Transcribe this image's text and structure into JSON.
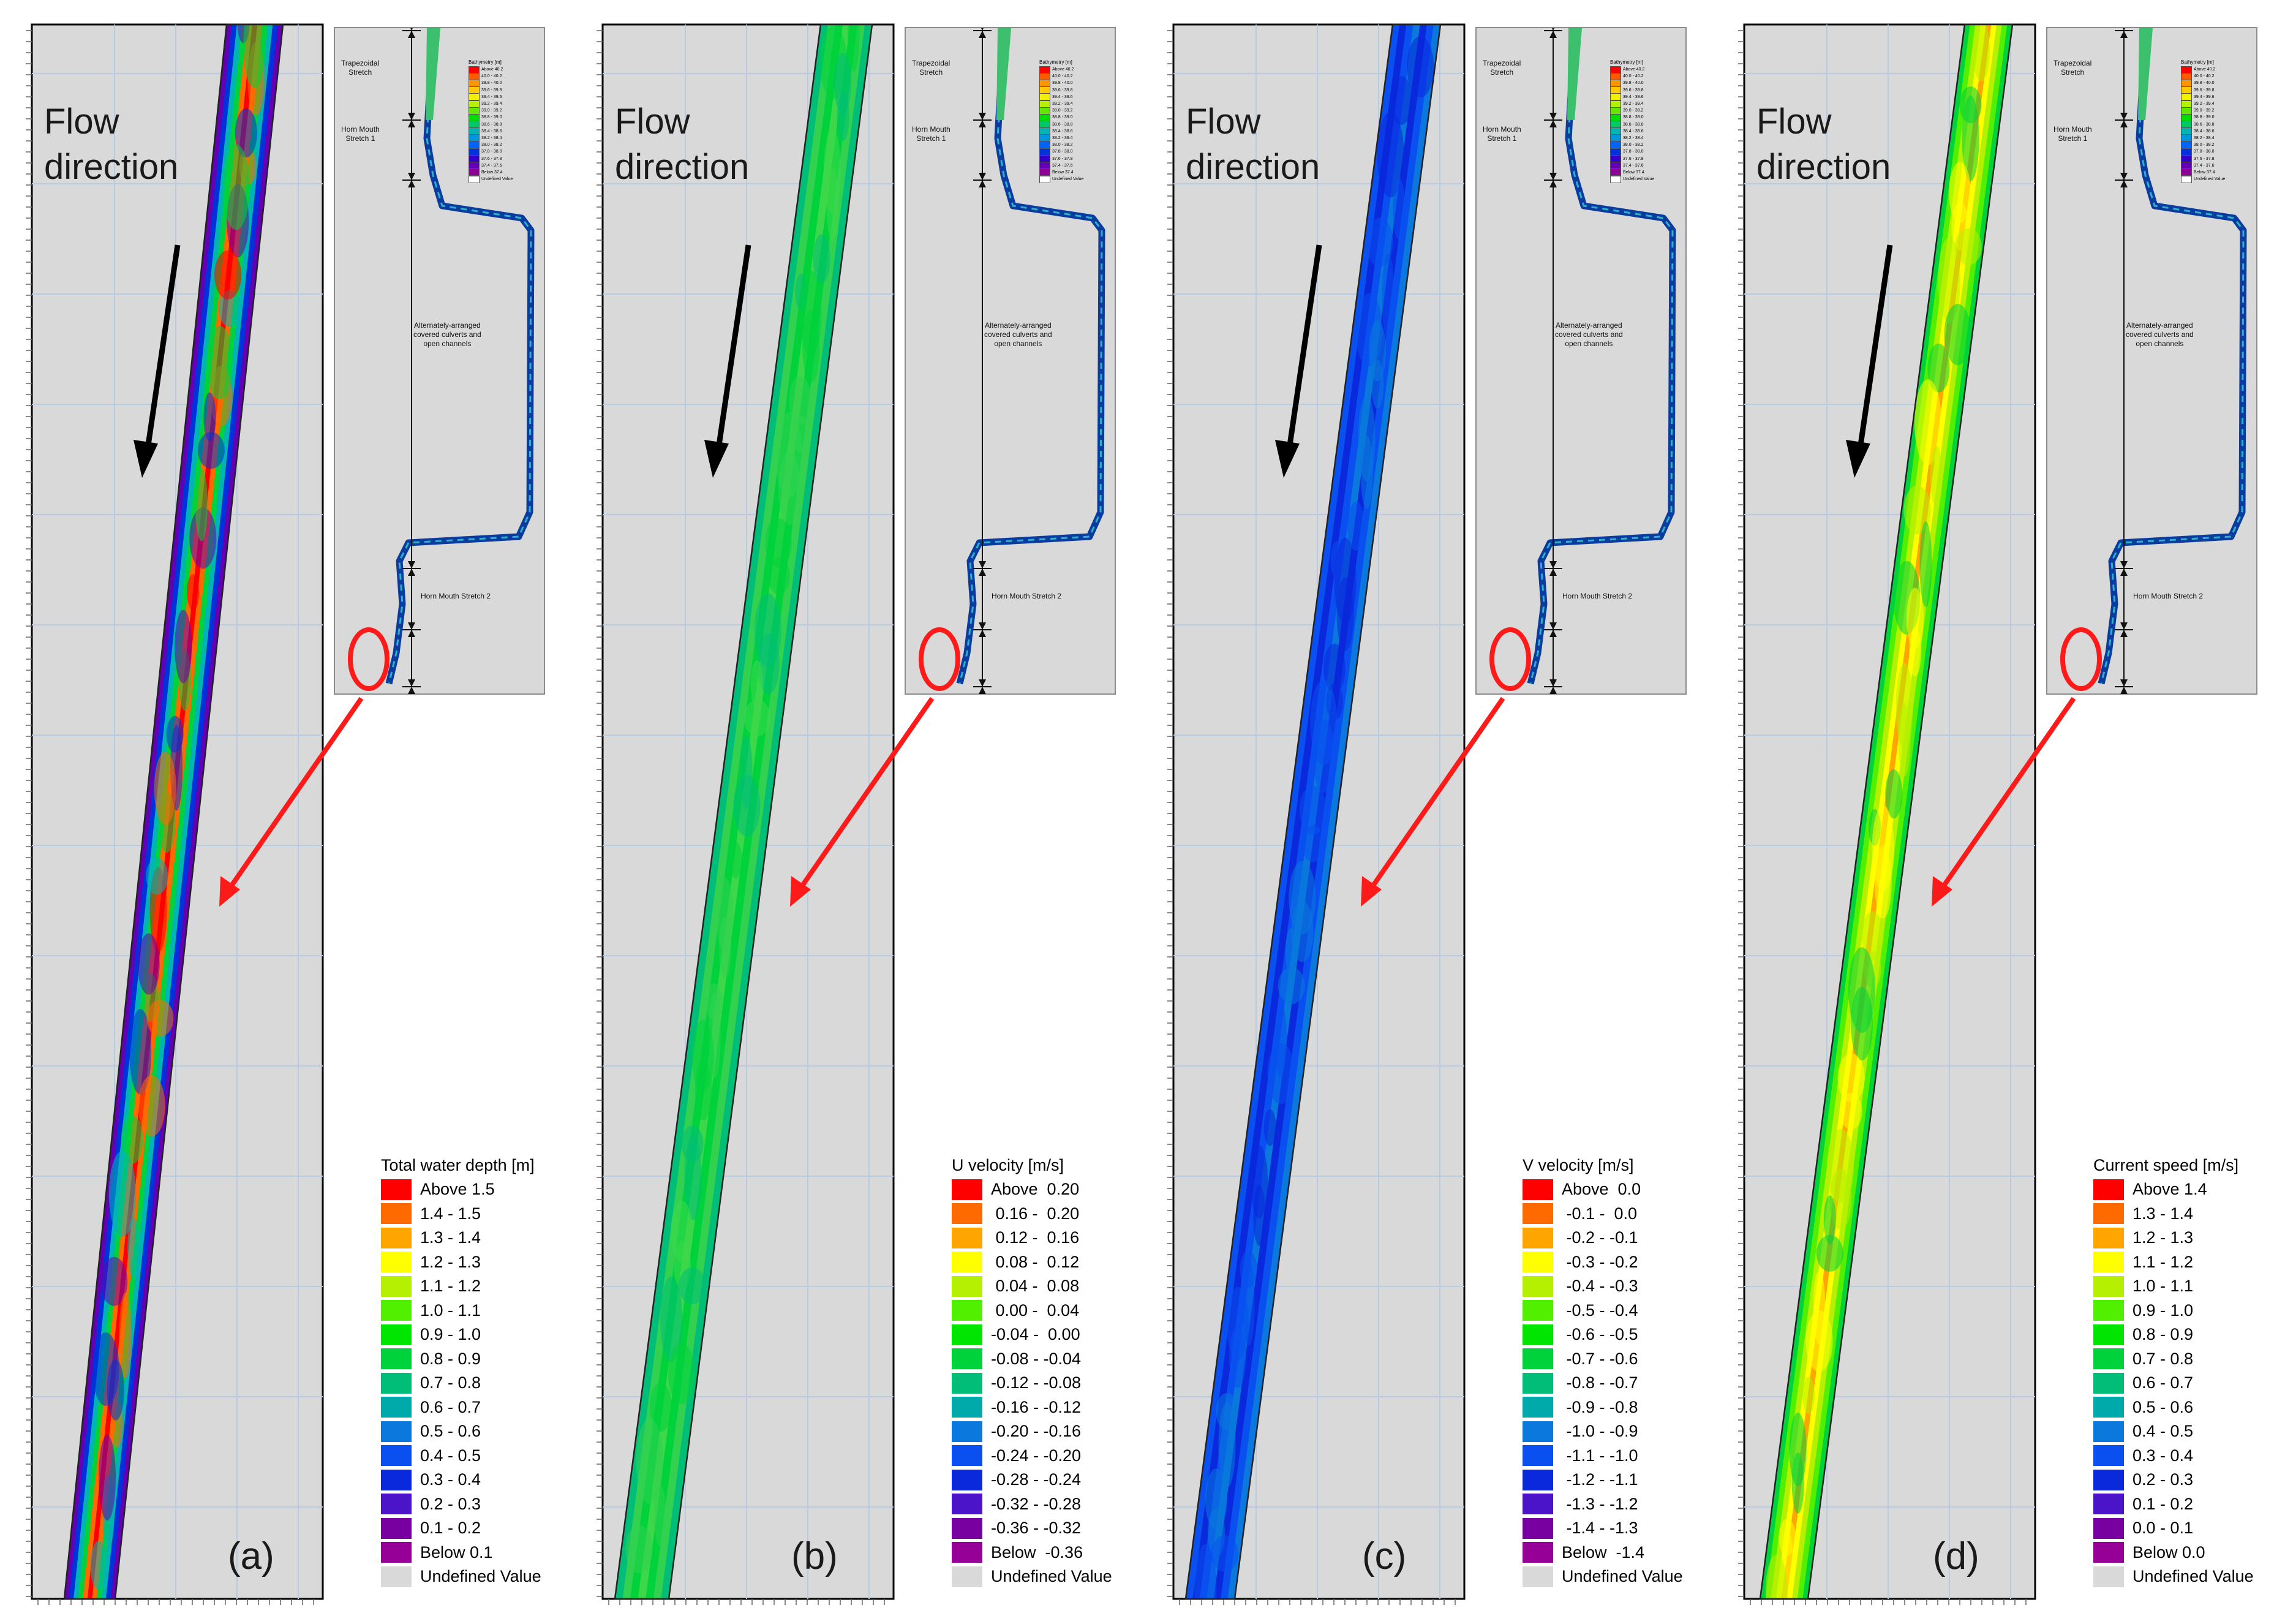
{
  "flow_label": "Flow\ndirection",
  "inset": {
    "legend_title": "Bathymetry [m]",
    "legend_items": [
      "Above 40.2",
      "40.0 - 40.2",
      "39.8 - 40.0",
      "39.6 - 39.8",
      "39.4 - 39.6",
      "39.2 - 39.4",
      "39.0 - 39.2",
      "38.8 - 39.0",
      "38.6 - 38.8",
      "38.4 - 38.6",
      "38.2 - 38.4",
      "38.0 - 38.2",
      "37.8 - 38.0",
      "37.6 - 37.8",
      "37.4 - 37.6",
      "Below 37.4",
      "Undefined Value"
    ],
    "legend_colors": [
      "#ff0000",
      "#ff5a00",
      "#ff9600",
      "#ffc800",
      "#f0f000",
      "#b4f000",
      "#64e600",
      "#00dc00",
      "#00c864",
      "#00b4b4",
      "#0096dc",
      "#0064ff",
      "#0032dc",
      "#3200c8",
      "#6400b4",
      "#8c0096",
      "#ffffff"
    ],
    "labels": {
      "trapezoidal": "Trapezoidal\nStretch",
      "horn1": "Horn Mouth\nStretch 1",
      "culverts": "Alternately-arranged\ncovered culverts and\nopen channels",
      "horn2": "Horn Mouth Stretch 2"
    }
  },
  "panels": [
    {
      "letter": "(a)",
      "legend_title": "Total water depth [m]",
      "legend_items": [
        "Above 1.5",
        "1.4 - 1.5",
        "1.3 - 1.4",
        "1.2 - 1.3",
        "1.1 - 1.2",
        "1.0 - 1.1",
        "0.9 - 1.0",
        "0.8 - 0.9",
        "0.7 - 0.8",
        "0.6 - 0.7",
        "0.5 - 0.6",
        "0.4 - 0.5",
        "0.3 - 0.4",
        "0.2 - 0.3",
        "0.1 - 0.2",
        "Below 0.1",
        "Undefined Value"
      ]
    },
    {
      "letter": "(b)",
      "legend_title": "U velocity [m/s]",
      "legend_items": [
        "Above  0.20",
        " 0.16 -  0.20",
        " 0.12 -  0.16",
        " 0.08 -  0.12",
        " 0.04 -  0.08",
        " 0.00 -  0.04",
        "-0.04 -  0.00",
        "-0.08 - -0.04",
        "-0.12 - -0.08",
        "-0.16 - -0.12",
        "-0.20 - -0.16",
        "-0.24 - -0.20",
        "-0.28 - -0.24",
        "-0.32 - -0.28",
        "-0.36 - -0.32",
        "Below  -0.36",
        "Undefined Value"
      ]
    },
    {
      "letter": "(c)",
      "legend_title": "V velocity [m/s]",
      "legend_items": [
        "Above  0.0",
        " -0.1 -  0.0",
        " -0.2 - -0.1",
        " -0.3 - -0.2",
        " -0.4 - -0.3",
        " -0.5 - -0.4",
        " -0.6 - -0.5",
        " -0.7 - -0.6",
        " -0.8 - -0.7",
        " -0.9 - -0.8",
        " -1.0 - -0.9",
        " -1.1 - -1.0",
        " -1.2 - -1.1",
        " -1.3 - -1.2",
        " -1.4 - -1.3",
        "Below  -1.4",
        "Undefined Value"
      ]
    },
    {
      "letter": "(d)",
      "legend_title": "Current speed [m/s]",
      "legend_items": [
        "Above 1.4",
        "1.3 - 1.4",
        "1.2 - 1.3",
        "1.1 - 1.2",
        "1.0 - 1.1",
        "0.9 - 1.0",
        "0.8 - 0.9",
        "0.7 - 0.8",
        "0.6 - 0.7",
        "0.5 - 0.6",
        "0.4 - 0.5",
        "0.3 - 0.4",
        "0.2 - 0.3",
        "0.1 - 0.2",
        "0.0 - 0.1",
        "Below 0.0",
        "Undefined Value"
      ]
    }
  ],
  "legend_colors": [
    "#ff0000",
    "#ff6a00",
    "#ffa500",
    "#ffff00",
    "#b4f000",
    "#50f000",
    "#00e600",
    "#00d23c",
    "#00be78",
    "#00aaaa",
    "#0a78dc",
    "#0a50f0",
    "#0a28dc",
    "#4b14c8",
    "#7800a0",
    "#960096",
    "#d9d9d9"
  ]
}
